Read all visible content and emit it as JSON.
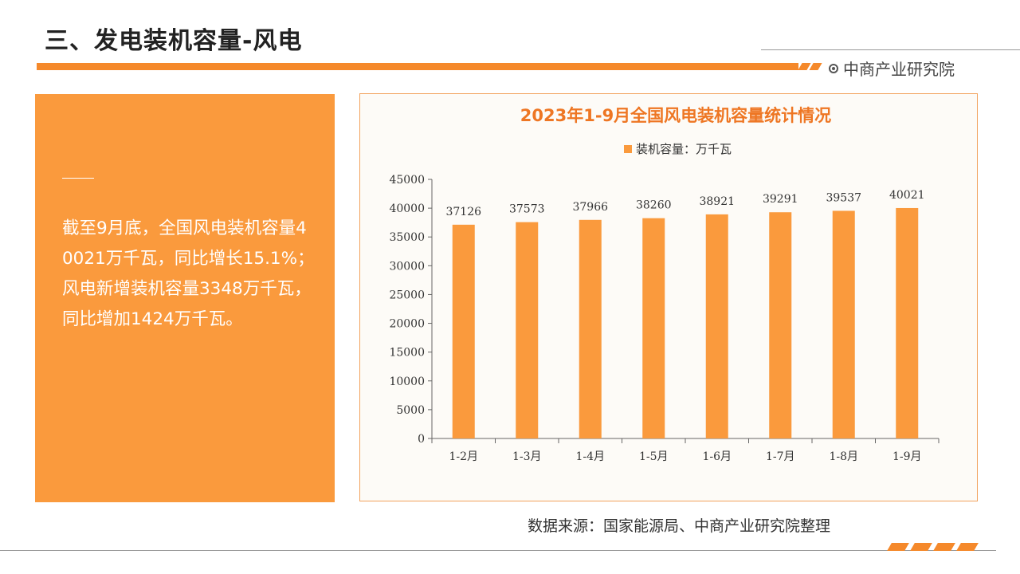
{
  "header": {
    "title": "三、发电装机容量-风电",
    "brand": "中商产业研究院"
  },
  "panel": {
    "text": "截至9月底，全国风电装机容量40021万千瓦，同比增长15.1%；风电新增装机容量3348万千瓦，同比增加1424万千瓦。"
  },
  "footer": {
    "source": "数据来源：国家能源局、中商产业研究院整理"
  },
  "colors": {
    "accent": "#f5892b",
    "panel": "#fa9a3d",
    "bar": "#fa9a3d",
    "title": "#ee7623"
  },
  "chart_data": {
    "type": "bar",
    "title": "2023年1-9月全国风电装机容量统计情况",
    "categories": [
      "1-2月",
      "1-3月",
      "1-4月",
      "1-5月",
      "1-6月",
      "1-7月",
      "1-8月",
      "1-9月"
    ],
    "series": [
      {
        "name": "装机容量：万千瓦",
        "values": [
          37126,
          37573,
          37966,
          38260,
          38921,
          39291,
          39537,
          40021
        ]
      }
    ],
    "ylim": [
      0,
      45000
    ],
    "yticks": [
      0,
      5000,
      10000,
      15000,
      20000,
      25000,
      30000,
      35000,
      40000,
      45000
    ],
    "legend": "top",
    "grid": false
  }
}
